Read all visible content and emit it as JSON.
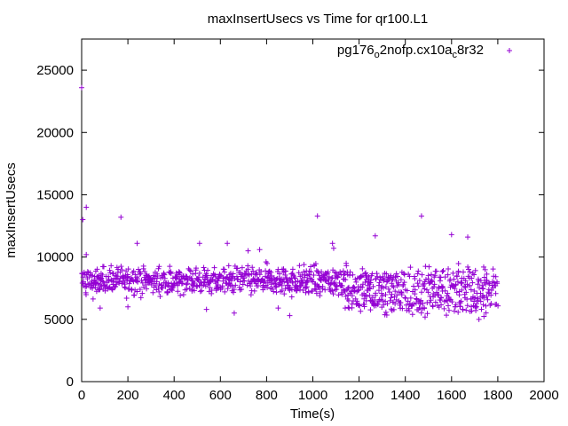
{
  "chart_data": {
    "type": "scatter",
    "title": "maxInsertUsecs vs Time for qr100.L1",
    "xlabel": "Time(s)",
    "ylabel": "maxInsertUsecs",
    "xlim": [
      0,
      2000
    ],
    "ylim": [
      0,
      27500
    ],
    "x_ticks": [
      0,
      200,
      400,
      600,
      800,
      1000,
      1200,
      1400,
      1600,
      1800,
      2000
    ],
    "y_ticks": [
      0,
      5000,
      10000,
      15000,
      20000,
      25000
    ],
    "x_tick_labels": [
      "0",
      "200",
      "400",
      "600",
      "800",
      "1000",
      "1200",
      "1400",
      "1600",
      "1800",
      "2000"
    ],
    "y_tick_labels": [
      "0",
      "5000",
      "10000",
      "15000",
      "20000",
      "25000"
    ],
    "legend_position": "top-right",
    "marker": "plus",
    "series": [
      {
        "name": "pg176_o2nofp.cx10a_c8r32",
        "name_parts": {
          "a": "pg176",
          "b": "o",
          "c": "2nofp.cx10a",
          "d": "c",
          "e": "8r32"
        },
        "color": "#9400d3",
        "outliers": [
          [
            0,
            23600
          ],
          [
            5,
            13000
          ],
          [
            20,
            14000
          ],
          [
            170,
            13200
          ],
          [
            240,
            11100
          ],
          [
            510,
            11100
          ],
          [
            630,
            11100
          ],
          [
            720,
            10500
          ],
          [
            770,
            10600
          ],
          [
            1020,
            13300
          ],
          [
            1085,
            11100
          ],
          [
            1090,
            10700
          ],
          [
            1270,
            11700
          ],
          [
            1470,
            13300
          ],
          [
            1600,
            11800
          ],
          [
            1670,
            11600
          ],
          [
            20,
            10200
          ],
          [
            80,
            5900
          ],
          [
            200,
            6000
          ],
          [
            540,
            5800
          ],
          [
            660,
            5500
          ],
          [
            850,
            5900
          ],
          [
            900,
            5300
          ],
          [
            1030,
            6900
          ],
          [
            1140,
            5900
          ]
        ],
        "segments": [
          {
            "x_range": [
              0,
              1150
            ],
            "band": [
              6500,
              9700
            ],
            "center": 8100,
            "step": 2.5
          },
          {
            "x_range": [
              1150,
              1800
            ],
            "band": [
              5000,
              9500
            ],
            "lanes": [
              [
                7000,
                9000
              ],
              [
                5500,
                7200
              ]
            ],
            "step": 2.2
          }
        ]
      }
    ]
  }
}
